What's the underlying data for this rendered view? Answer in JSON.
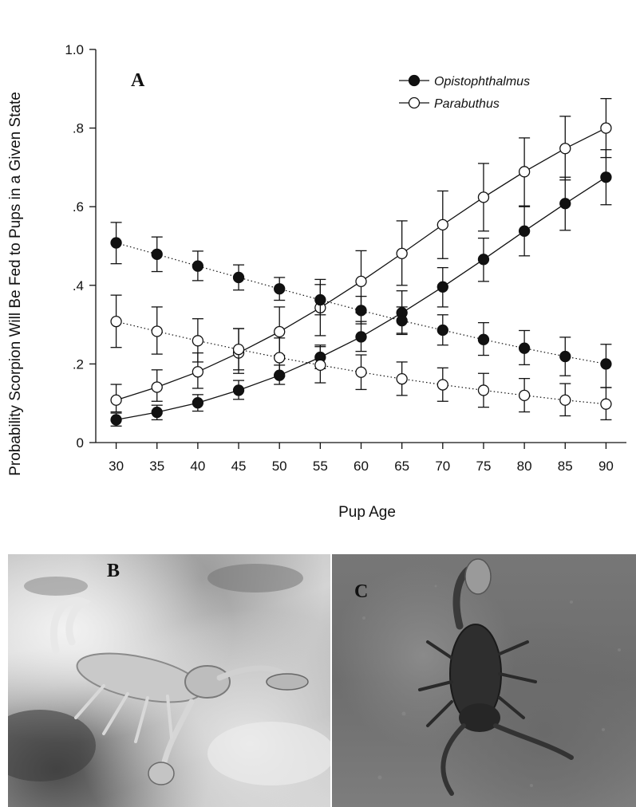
{
  "chart_data": {
    "type": "line",
    "panel_label": "A",
    "xlabel": "Pup Age",
    "ylabel": "Probability Scorpion Will Be Fed to Pups in a Given State",
    "xlim": [
      27.5,
      92.5
    ],
    "ylim": [
      0,
      1.0
    ],
    "x_ticks": [
      30,
      35,
      40,
      45,
      50,
      55,
      60,
      65,
      70,
      75,
      80,
      85,
      90
    ],
    "y_ticks": [
      {
        "value": 0,
        "label": "0"
      },
      {
        "value": 0.2,
        "label": ".2"
      },
      {
        "value": 0.4,
        "label": ".4"
      },
      {
        "value": 0.6,
        "label": ".6"
      },
      {
        "value": 0.8,
        "label": ".8"
      },
      {
        "value": 1.0,
        "label": "1.0"
      }
    ],
    "grid": false,
    "legend_position": "top-right",
    "legend": [
      {
        "label": "Opistophthalmus",
        "marker": "filled-circle",
        "line": "solid"
      },
      {
        "label": "Parabuthus",
        "marker": "open-circle",
        "line": "solid"
      }
    ],
    "x": [
      30,
      35,
      40,
      45,
      50,
      55,
      60,
      65,
      70,
      75,
      80,
      85,
      90
    ],
    "series": [
      {
        "species": "Opistophthalmus",
        "marker": "filled",
        "line": "solid",
        "values": [
          0.058,
          0.077,
          0.101,
          0.133,
          0.171,
          0.217,
          0.269,
          0.33,
          0.396,
          0.466,
          0.538,
          0.608,
          0.675
        ],
        "err_low": [
          0.042,
          0.058,
          0.08,
          0.11,
          0.148,
          0.188,
          0.232,
          0.278,
          0.345,
          0.41,
          0.475,
          0.54,
          0.605
        ],
        "err_high": [
          0.075,
          0.095,
          0.122,
          0.158,
          0.197,
          0.248,
          0.308,
          0.386,
          0.445,
          0.52,
          0.6,
          0.675,
          0.745
        ]
      },
      {
        "species": "Parabuthus",
        "marker": "open",
        "line": "solid",
        "values": [
          0.108,
          0.141,
          0.18,
          0.228,
          0.282,
          0.343,
          0.41,
          0.481,
          0.554,
          0.624,
          0.689,
          0.748,
          0.8
        ],
        "err_low": [
          0.078,
          0.105,
          0.138,
          0.176,
          0.222,
          0.272,
          0.33,
          0.4,
          0.468,
          0.538,
          0.602,
          0.668,
          0.725
        ],
        "err_high": [
          0.148,
          0.185,
          0.228,
          0.29,
          0.345,
          0.415,
          0.488,
          0.564,
          0.64,
          0.71,
          0.775,
          0.83,
          0.875
        ]
      },
      {
        "species": "Opistophthalmus",
        "marker": "filled",
        "line": "dotted",
        "values": [
          0.508,
          0.479,
          0.449,
          0.42,
          0.391,
          0.363,
          0.336,
          0.31,
          0.286,
          0.262,
          0.24,
          0.219,
          0.2
        ],
        "err_low": [
          0.455,
          0.435,
          0.412,
          0.388,
          0.362,
          0.325,
          0.302,
          0.275,
          0.248,
          0.222,
          0.198,
          0.17,
          0.14
        ],
        "err_high": [
          0.56,
          0.523,
          0.487,
          0.452,
          0.42,
          0.402,
          0.372,
          0.345,
          0.325,
          0.305,
          0.285,
          0.268,
          0.25
        ]
      },
      {
        "species": "Parabuthus",
        "marker": "open",
        "line": "dotted",
        "values": [
          0.308,
          0.283,
          0.259,
          0.237,
          0.216,
          0.197,
          0.179,
          0.162,
          0.147,
          0.133,
          0.12,
          0.108,
          0.098
        ],
        "err_low": [
          0.242,
          0.225,
          0.205,
          0.185,
          0.168,
          0.152,
          0.135,
          0.12,
          0.105,
          0.09,
          0.078,
          0.068,
          0.058
        ],
        "err_high": [
          0.375,
          0.345,
          0.315,
          0.29,
          0.266,
          0.244,
          0.223,
          0.205,
          0.19,
          0.176,
          0.163,
          0.15,
          0.14
        ]
      }
    ]
  },
  "photos": [
    {
      "label": "B",
      "tone": "light sand"
    },
    {
      "label": "C",
      "tone": "dark gravel"
    }
  ]
}
